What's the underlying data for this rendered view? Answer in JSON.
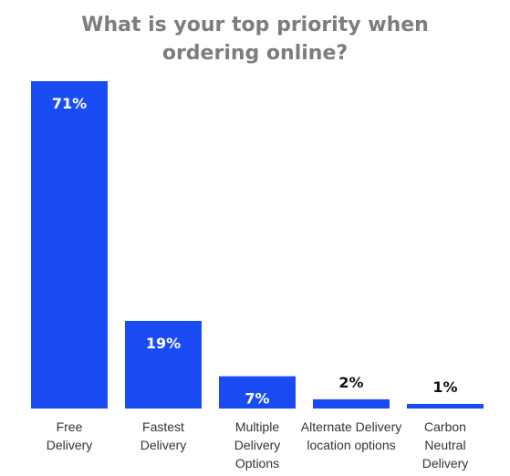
{
  "chart_data": {
    "type": "bar",
    "title": "What is your top priority when\nordering online?",
    "xlabel": "",
    "ylabel": "",
    "categories": [
      "Free\nDelivery",
      "Fastest\nDelivery",
      "Multiple\nDelivery\nOptions",
      "Alternate Delivery\nlocation options",
      "Carbon\nNeutral\nDelivery"
    ],
    "values": [
      71,
      19,
      7,
      2,
      1
    ],
    "data_labels": [
      "71%",
      "19%",
      "7%",
      "2%",
      "1%"
    ],
    "ylim": [
      0,
      71
    ],
    "grid": false,
    "legend": "none",
    "colors": {
      "bar": "#1a4cf5",
      "label_inside": "#ffffff",
      "label_outside": "#111111",
      "title": "#7d7d7d",
      "axis_text": "#333333"
    }
  }
}
